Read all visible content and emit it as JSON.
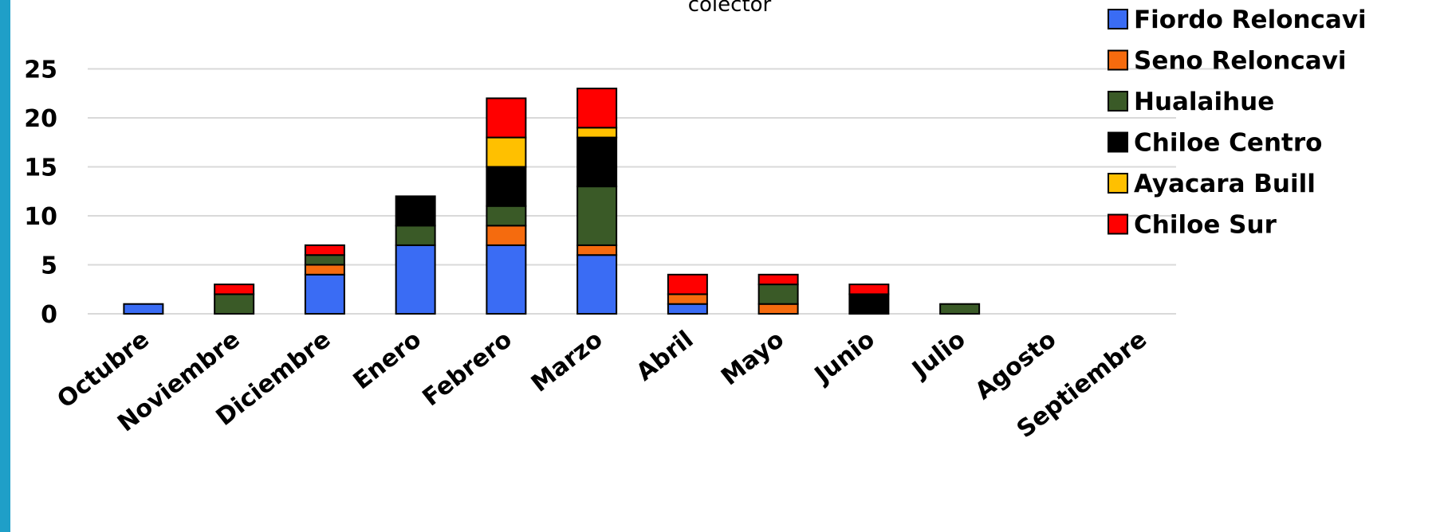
{
  "chart_data": {
    "type": "bar",
    "stacked": true,
    "title": "colector",
    "xlabel": "",
    "ylabel": "",
    "ylim": [
      0,
      25
    ],
    "yticks": [
      0,
      5,
      10,
      15,
      20,
      25
    ],
    "grid": true,
    "legend_position": "top-right",
    "categories": [
      "Octubre",
      "Noviembre",
      "Diciembre",
      "Enero",
      "Febrero",
      "Marzo",
      "Abril",
      "Mayo",
      "Junio",
      "Julio",
      "Agosto",
      "Septiembre"
    ],
    "series": [
      {
        "name": "Fiordo Reloncavi",
        "color": "#3a6cf4",
        "values": [
          1,
          0,
          4,
          7,
          7,
          6,
          1,
          0,
          0,
          0,
          0,
          0
        ]
      },
      {
        "name": "Seno Reloncavi",
        "color": "#f56b0e",
        "values": [
          0,
          0,
          1,
          0,
          2,
          1,
          1,
          1,
          0,
          0,
          0,
          0
        ]
      },
      {
        "name": "Hualaihue",
        "color": "#3a5a27",
        "values": [
          0,
          2,
          1,
          2,
          2,
          6,
          0,
          2,
          0,
          1,
          0,
          0
        ]
      },
      {
        "name": "Chiloe Centro",
        "color": "#000000",
        "values": [
          0,
          0,
          0,
          3,
          4,
          5,
          0,
          0,
          2,
          0,
          0,
          0
        ]
      },
      {
        "name": "Ayacara Buill",
        "color": "#ffc000",
        "values": [
          0,
          0,
          0,
          0,
          3,
          1,
          0,
          0,
          0,
          0,
          0,
          0
        ]
      },
      {
        "name": "Chiloe Sur",
        "color": "#ff0000",
        "values": [
          0,
          1,
          1,
          0,
          4,
          4,
          2,
          1,
          1,
          0,
          0,
          0
        ]
      }
    ]
  }
}
